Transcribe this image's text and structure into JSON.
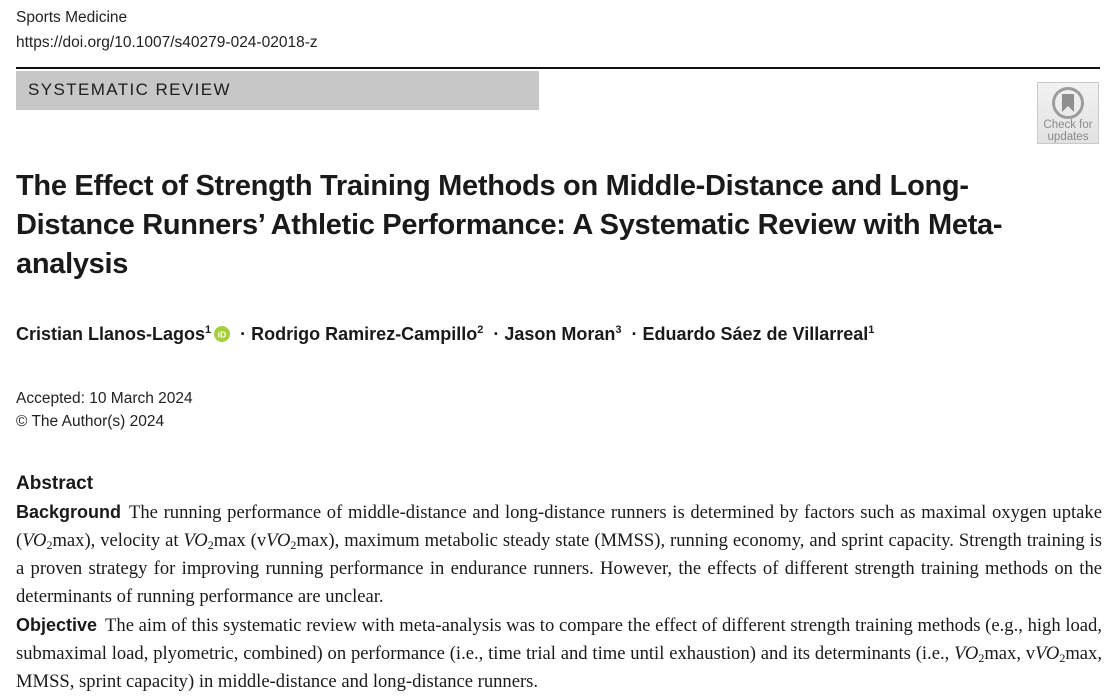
{
  "header": {
    "journal": "Sports Medicine",
    "doi": "https://doi.org/10.1007/s40279-024-02018-z"
  },
  "section_label": "SYSTEMATIC REVIEW",
  "badge": {
    "icon": "crossmark-icon",
    "line1": "Check for",
    "line2": "updates"
  },
  "title": "The Effect of Strength Training Methods on Middle-Distance and Long-Distance Runners’ Athletic Performance: A Systematic Review with Meta-analysis",
  "authors": [
    {
      "name": "Cristian Llanos-Lagos",
      "aff": "1"
    },
    {
      "name": "Rodrigo Ramirez-Campillo",
      "aff": "2"
    },
    {
      "name": "Jason Moran",
      "aff": "3"
    },
    {
      "name": "Eduardo Sáez de Villarreal",
      "aff": "1"
    }
  ],
  "author_separator": "·",
  "meta": {
    "accepted": "Accepted: 10 March 2024",
    "copyright": "© The Author(s) 2024"
  },
  "abstract": {
    "heading": "Abstract",
    "background_label": "Background",
    "objective_label": "Objective",
    "text": {
      "bg1": "The running performance of middle-distance and long-distance runners is determined by factors such as maximal oxygen uptake (",
      "vo": "VO",
      "sub2": "2",
      "max": "max",
      "bg2": "), velocity at ",
      "bg3": " (v",
      "bg4": "), maximum metabolic steady state (MMSS), running economy, and sprint capacity. Strength training is a proven strategy for improving running performance in endurance runners. However, the effects of different strength training methods on the determinants of running performance are unclear.",
      "ob1": "The aim of this systematic review with meta-analysis was to compare the effect of different strength training methods (e.g., high load, submaximal load, plyometric, combined) on performance (i.e., time trial and time until exhaustion) and its determinants (i.e., ",
      "ob2": ", v",
      "ob3": ", MMSS, sprint capacity) in middle-distance and long-distance runners."
    }
  }
}
